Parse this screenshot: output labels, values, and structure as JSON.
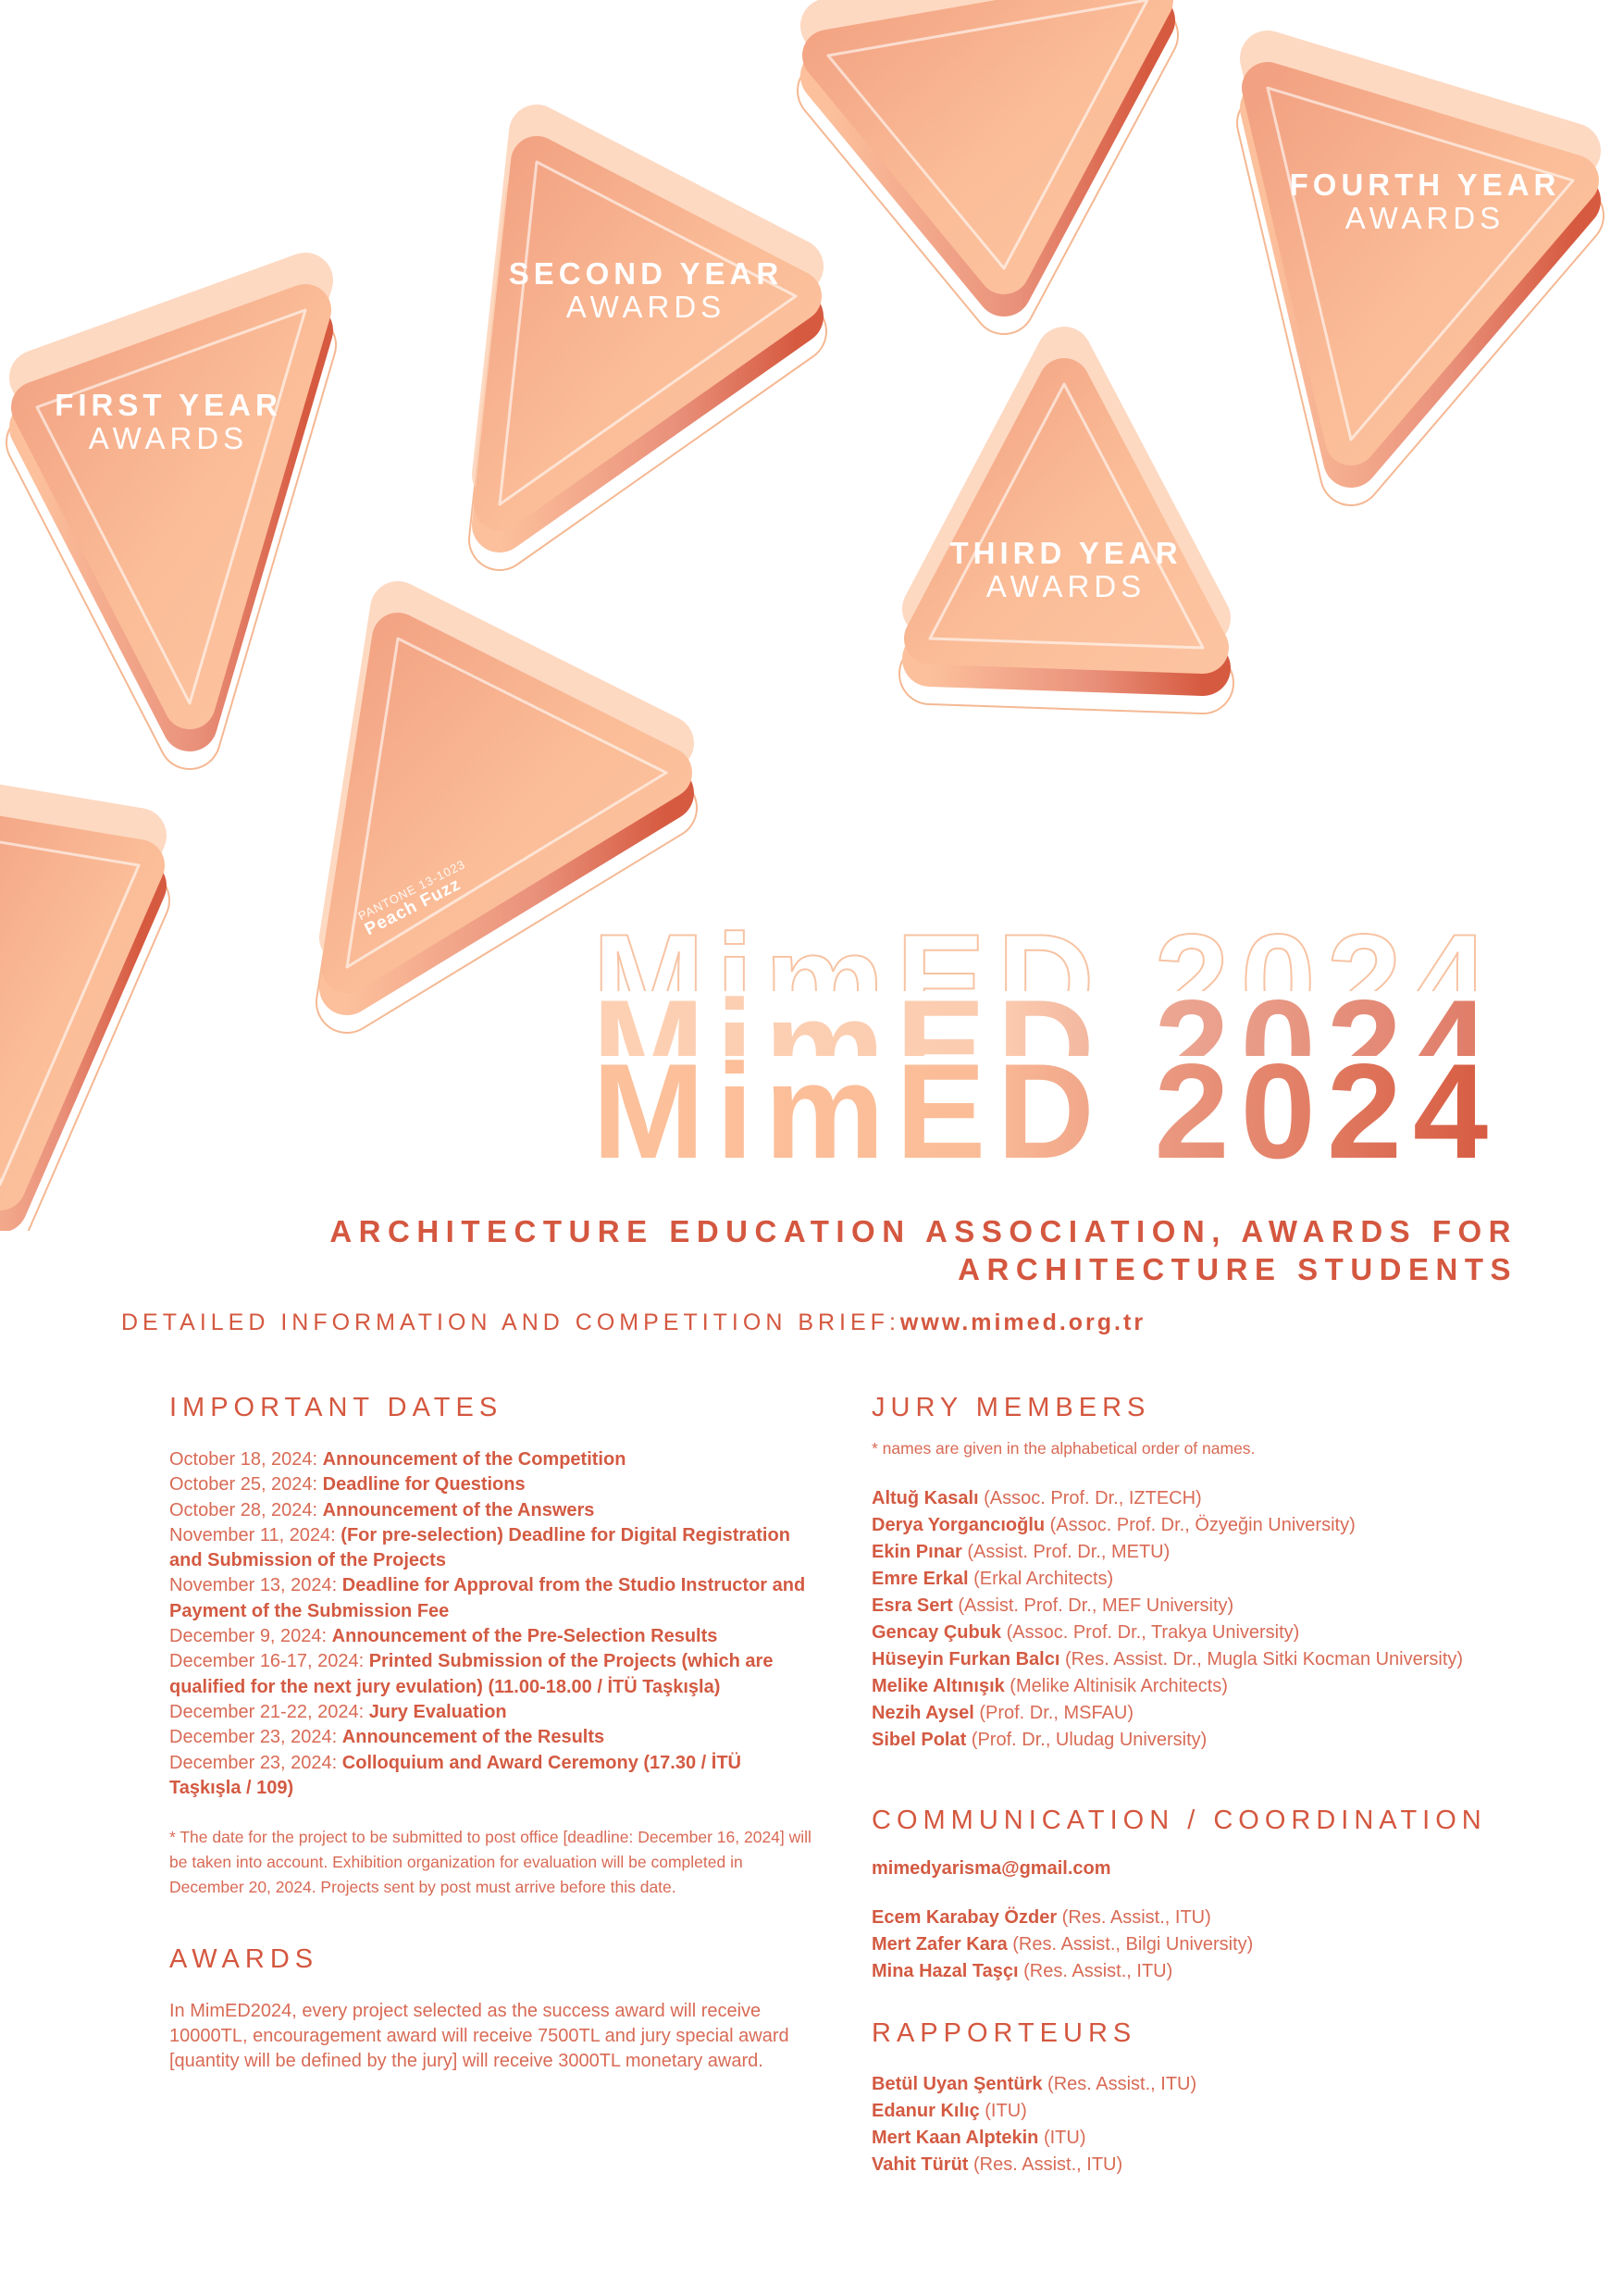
{
  "poster": {
    "awards_labels": [
      {
        "line1": "FIRST YEAR",
        "line2": "AWARDS"
      },
      {
        "line1": "SECOND YEAR",
        "line2": "AWARDS"
      },
      {
        "line1": "THIRD YEAR",
        "line2": "AWARDS"
      },
      {
        "line1": "FOURTH YEAR",
        "line2": "AWARDS"
      }
    ],
    "pantone": {
      "code": "PANTONE 13-1023",
      "name": "Peach Fuzz"
    },
    "title": "MimED 2024",
    "subtitle": "ARCHITECTURE EDUCATION ASSOCIATION, AWARDS FOR ARCHITECTURE STUDENTS",
    "detail_label": "DETAILED INFORMATION AND COMPETITION BRIEF:",
    "detail_url": "www.mimed.org.tr",
    "colors": {
      "accent": "#d4573f",
      "peach": "#fbbf9a",
      "peach_light": "#fdd3b8",
      "outline": "#f5b893"
    }
  },
  "important_dates": {
    "heading": "IMPORTANT DATES",
    "items": [
      {
        "date": "October 18, 2024: ",
        "event": "Announcement of the Competition"
      },
      {
        "date": "October 25, 2024: ",
        "event": "Deadline for Questions"
      },
      {
        "date": "October 28, 2024: ",
        "event": "Announcement of the Answers"
      },
      {
        "date": "November 11, 2024: ",
        "event": "(For pre-selection) Deadline for Digital Registration and Submission of the Projects"
      },
      {
        "date": "November 13, 2024: ",
        "event": "Deadline for Approval from the Studio Instructor and Payment of the Submission Fee"
      },
      {
        "date": "December 9, 2024: ",
        "event": "Announcement of the Pre-Selection Results"
      },
      {
        "date": "December 16-17, 2024: ",
        "event": "Printed Submission of the Projects (which are qualified for the next jury evulation) (11.00-18.00 / İTÜ Taşkışla)"
      },
      {
        "date": "December 21-22, 2024: ",
        "event": "Jury Evaluation"
      },
      {
        "date": "December 23, 2024: ",
        "event": "Announcement of the Results"
      },
      {
        "date": "December 23, 2024: ",
        "event": "Colloquium and Award Ceremony (17.30 / İTÜ Taşkışla / 109)"
      }
    ],
    "note": "* The date for the project to be submitted to post office [deadline: December 16, 2024] will be taken into account. Exhibition organization for evaluation will be completed in December 20, 2024. Projects sent by post must arrive before this date."
  },
  "awards": {
    "heading": "AWARDS",
    "text": "In MimED2024, every project selected as the success award will receive 10000TL, encouragement award will receive 7500TL and jury special award [quantity will be defined by the jury] will receive 3000TL monetary award."
  },
  "jury": {
    "heading": "JURY MEMBERS",
    "note": "* names are given in the alphabetical order of names.",
    "members": [
      {
        "name": "Altuğ Kasalı",
        "role": " (Assoc. Prof. Dr., IZTECH)"
      },
      {
        "name": "Derya Yorgancıoğlu",
        "role": " (Assoc. Prof. Dr., Özyeğin University)"
      },
      {
        "name": "Ekin Pınar",
        "role": " (Assist. Prof. Dr., METU)"
      },
      {
        "name": "Emre Erkal",
        "role": " (Erkal Architects)"
      },
      {
        "name": "Esra Sert",
        "role": " (Assist. Prof. Dr., MEF University)"
      },
      {
        "name": "Gencay Çubuk",
        "role": " (Assoc. Prof. Dr., Trakya University)"
      },
      {
        "name": "Hüseyin Furkan Balcı",
        "role": " (Res. Assist. Dr., Mugla Sitki Kocman University)"
      },
      {
        "name": "Melike Altınışık",
        "role": " (Melike Altinisik Architects)"
      },
      {
        "name": "Nezih Aysel",
        "role": " (Prof. Dr., MSFAU)"
      },
      {
        "name": "Sibel Polat",
        "role": " (Prof. Dr., Uludag University)"
      }
    ]
  },
  "communication": {
    "heading": "COMMUNICATION / COORDINATION",
    "email": "mimedyarisma@gmail.com",
    "members": [
      {
        "name": "Ecem Karabay Özder",
        "role": " (Res. Assist., ITU)"
      },
      {
        "name": "Mert Zafer Kara",
        "role": " (Res. Assist., Bilgi University)"
      },
      {
        "name": "Mina Hazal Taşçı",
        "role": " (Res. Assist., ITU)"
      }
    ]
  },
  "rapporteurs": {
    "heading": "RAPPORTEURS",
    "members": [
      {
        "name": "Betül Uyan Şentürk",
        "role": " (Res. Assist., ITU)"
      },
      {
        "name": "Edanur Kılıç",
        "role": " (ITU)"
      },
      {
        "name": "Mert Kaan Alptekin",
        "role": " (ITU)"
      },
      {
        "name": "Vahit Türüt",
        "role": " (Res. Assist., ITU)"
      }
    ]
  }
}
